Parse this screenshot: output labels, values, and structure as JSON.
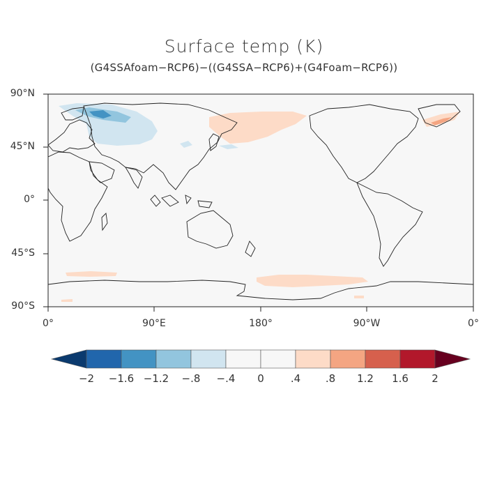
{
  "title": "Surface temp (K)",
  "subtitle": "(G4SSAfoam−RCP6)−((G4SSA−RCP6)+(G4Foam−RCP6))",
  "y_ticks": [
    "90°N",
    "45°N",
    "0°",
    "45°S",
    "90°S"
  ],
  "x_ticks": [
    "0°",
    "90°E",
    "180°",
    "90°W",
    "0°"
  ],
  "colorbar": {
    "levels": [
      "−2",
      "−1.6",
      "−1.2",
      "−.8",
      "−.4",
      "0",
      ".4",
      ".8",
      "1.2",
      "1.6",
      "2"
    ],
    "colors": [
      "#0b3a6e",
      "#2166ac",
      "#4393c3",
      "#92c5de",
      "#d1e5f0",
      "#f7f7f7",
      "#f7f7f7",
      "#fddbc7",
      "#f4a582",
      "#d6604d",
      "#b2182b",
      "#67001f"
    ]
  },
  "map": {
    "projection": "cylindrical-equidistant",
    "center_longitude": 180,
    "lon_range": [
      0,
      360
    ],
    "lat_range": [
      -90,
      90
    ],
    "background_color": "#f7f7f7",
    "coastline_color": "#222222"
  }
}
